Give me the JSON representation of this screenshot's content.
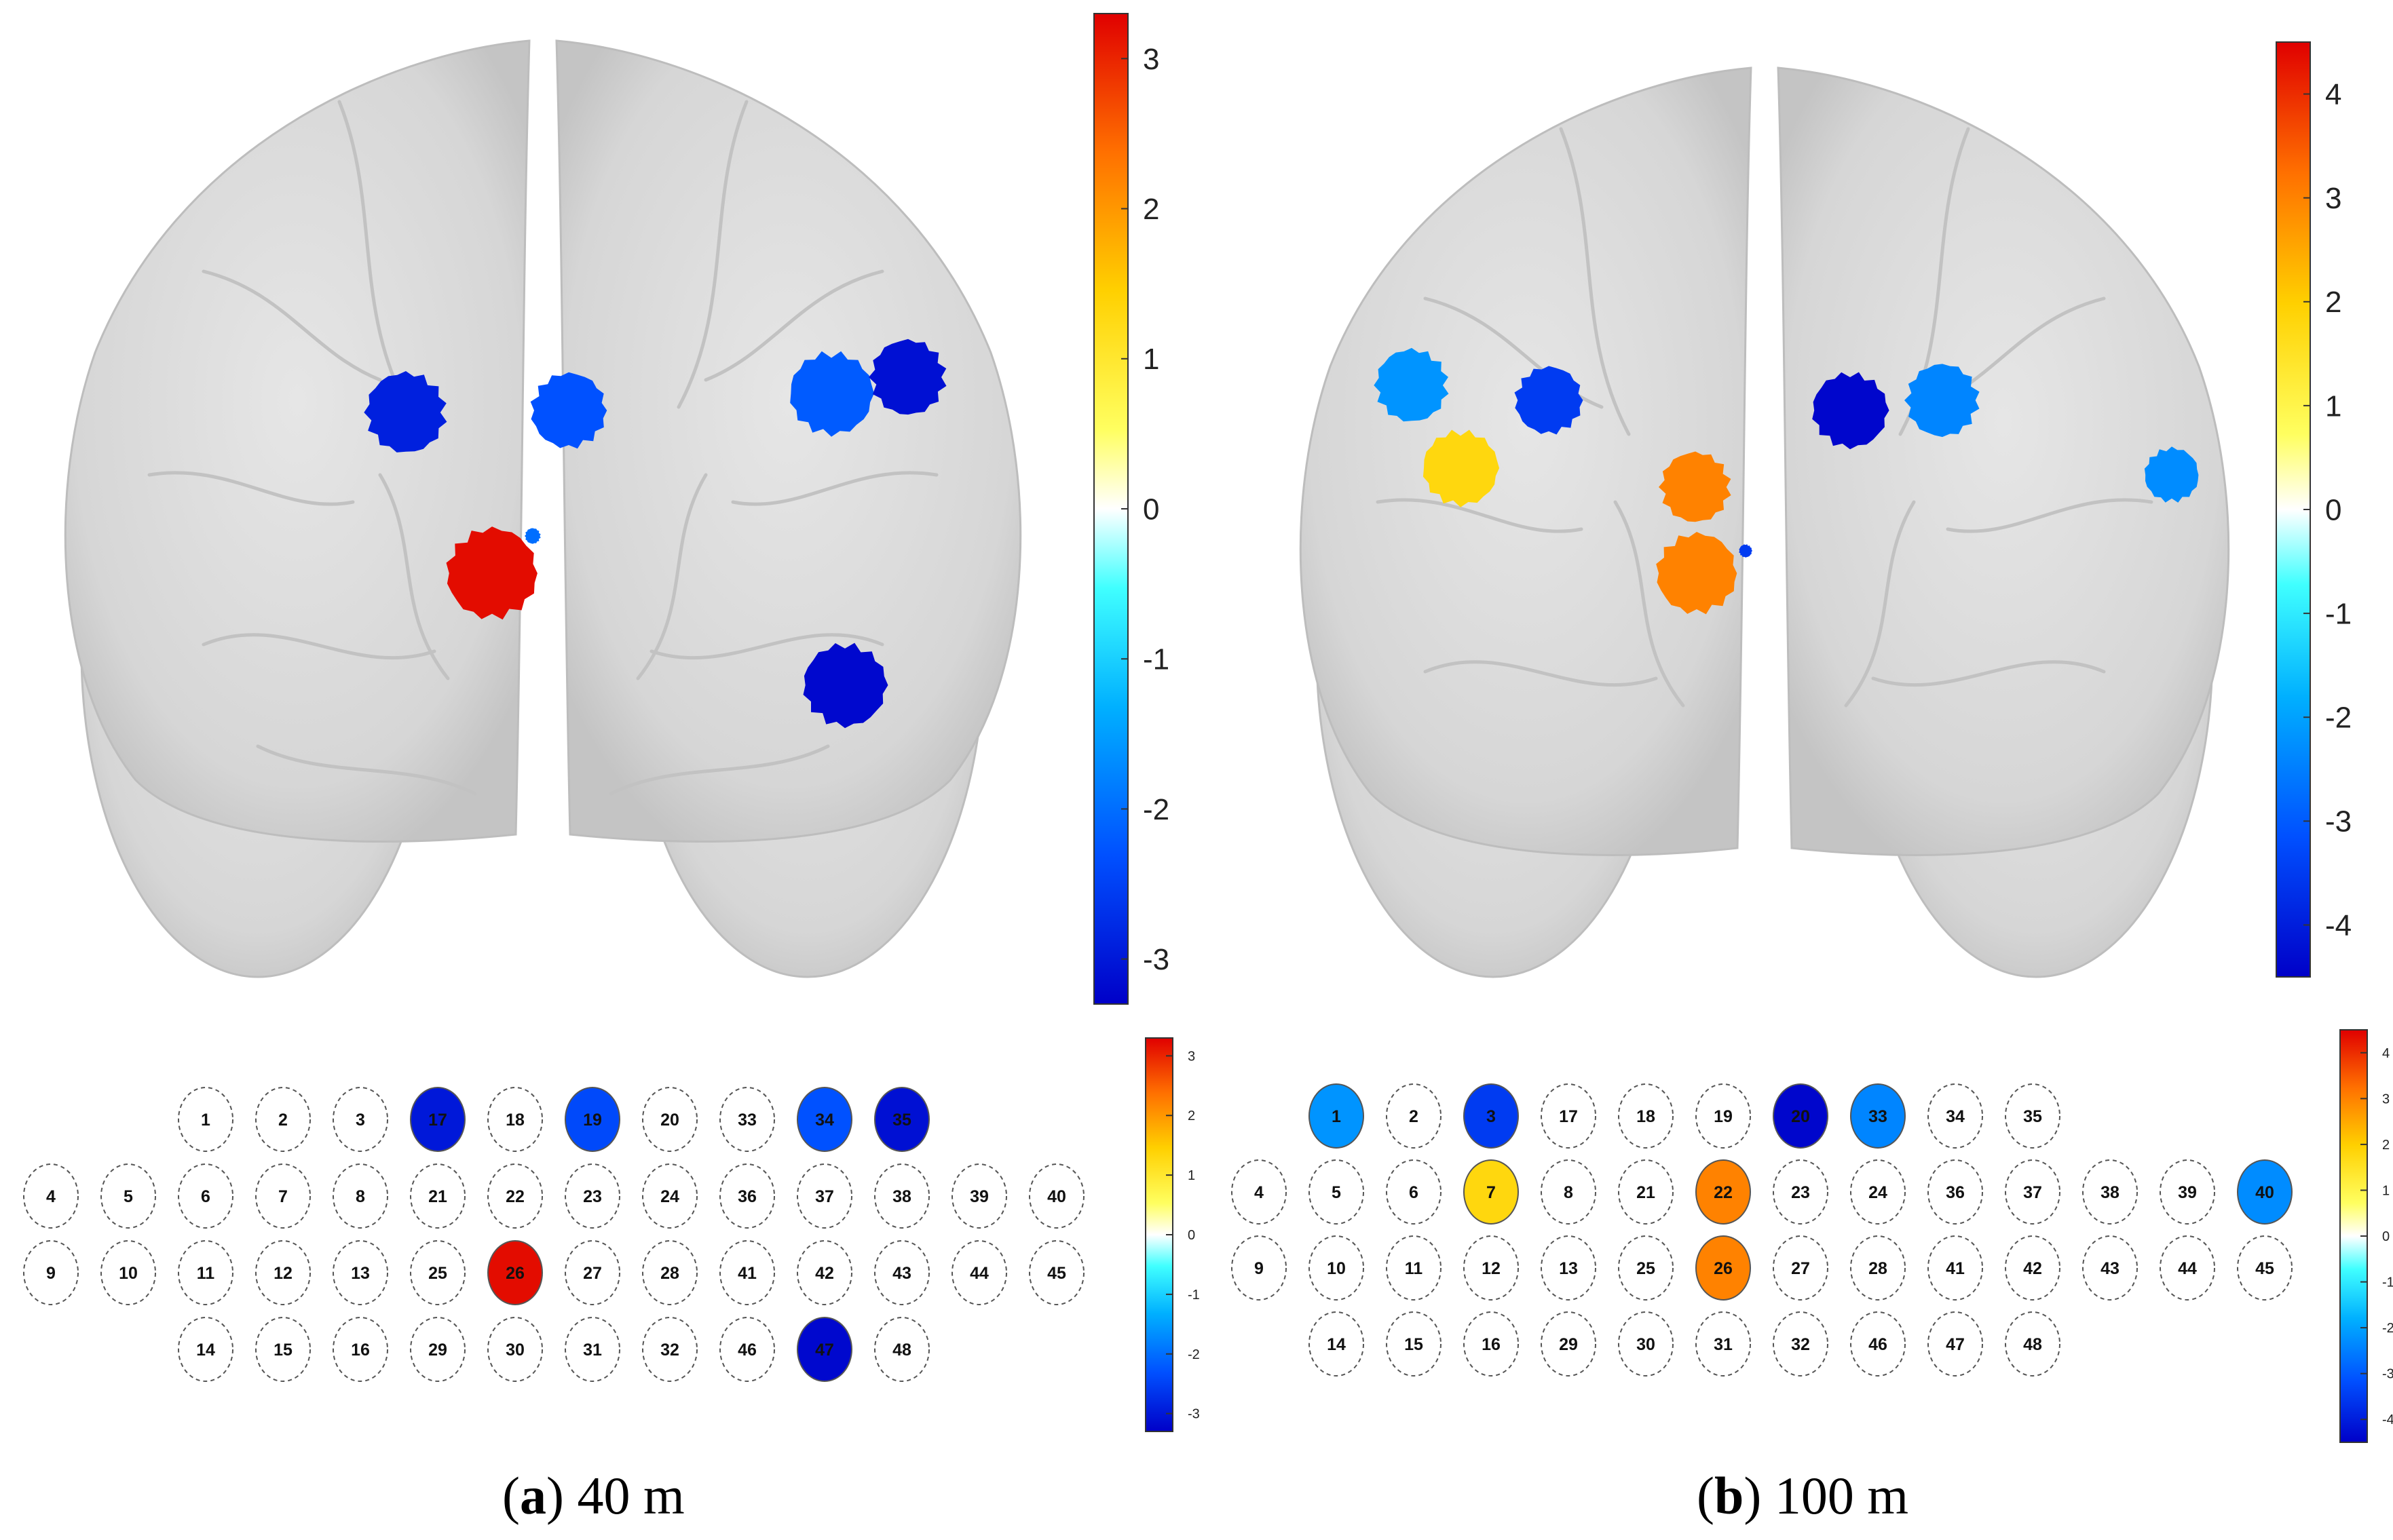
{
  "panels": [
    {
      "id": "a",
      "caption_letter": "a",
      "caption_text": "40 m",
      "brain_colorbar": {
        "min": -3.3,
        "max": 3.3,
        "ticks": [
          3,
          2,
          1,
          0,
          -1,
          -2,
          -3
        ]
      },
      "grid_colorbar": {
        "min": -3.3,
        "max": 3.3,
        "ticks": [
          3,
          2,
          1,
          0,
          -1,
          -2,
          -3
        ]
      },
      "channels": [
        {
          "label": "17",
          "value": -3.0
        },
        {
          "label": "19",
          "value": -2.4
        },
        {
          "label": "34",
          "value": -2.3
        },
        {
          "label": "35",
          "value": -3.1
        },
        {
          "label": "26",
          "value": 3.2
        },
        {
          "label": "47",
          "value": -3.2
        }
      ],
      "brain_blobs": [
        {
          "value": -2.9
        },
        {
          "value": -2.3
        },
        {
          "value": -2.2
        },
        {
          "value": -3.1
        },
        {
          "value": 3.2
        },
        {
          "value": -3.2
        },
        {
          "value": -2.0
        }
      ]
    },
    {
      "id": "b",
      "caption_letter": "b",
      "caption_text": "100 m",
      "brain_colorbar": {
        "min": -4.5,
        "max": 4.5,
        "ticks": [
          4,
          3,
          2,
          1,
          0,
          -1,
          -2,
          -3,
          -4
        ]
      },
      "grid_colorbar": {
        "min": -4.5,
        "max": 4.5,
        "ticks": [
          4,
          3,
          2,
          1,
          0,
          -1,
          -2,
          -3,
          -4
        ]
      },
      "channels": [
        {
          "label": "1",
          "value": -2.2
        },
        {
          "label": "3",
          "value": -3.5
        },
        {
          "label": "20",
          "value": -4.4
        },
        {
          "label": "33",
          "value": -2.4
        },
        {
          "label": "7",
          "value": 1.8
        },
        {
          "label": "22",
          "value": 3.0
        },
        {
          "label": "40",
          "value": -2.3
        },
        {
          "label": "26",
          "value": 3.0
        }
      ],
      "brain_blobs": [
        {
          "value": -2.2
        },
        {
          "value": -3.5
        },
        {
          "value": 1.8
        },
        {
          "value": 3.0
        },
        {
          "value": 3.0
        },
        {
          "value": -4.4
        },
        {
          "value": -2.4
        },
        {
          "value": -2.3
        },
        {
          "value": -3.5
        }
      ]
    }
  ],
  "grid_rows": [
    [
      "1",
      "2",
      "3",
      "17",
      "18",
      "19",
      "20",
      "33",
      "34",
      "35"
    ],
    [
      "4",
      "5",
      "6",
      "7",
      "8",
      "21",
      "22",
      "23",
      "24",
      "36",
      "37",
      "38",
      "39",
      "40"
    ],
    [
      "9",
      "10",
      "11",
      "12",
      "13",
      "25",
      "26",
      "27",
      "28",
      "41",
      "42",
      "43",
      "44",
      "45"
    ],
    [
      "14",
      "15",
      "16",
      "29",
      "30",
      "31",
      "32",
      "46",
      "47",
      "48"
    ]
  ]
}
